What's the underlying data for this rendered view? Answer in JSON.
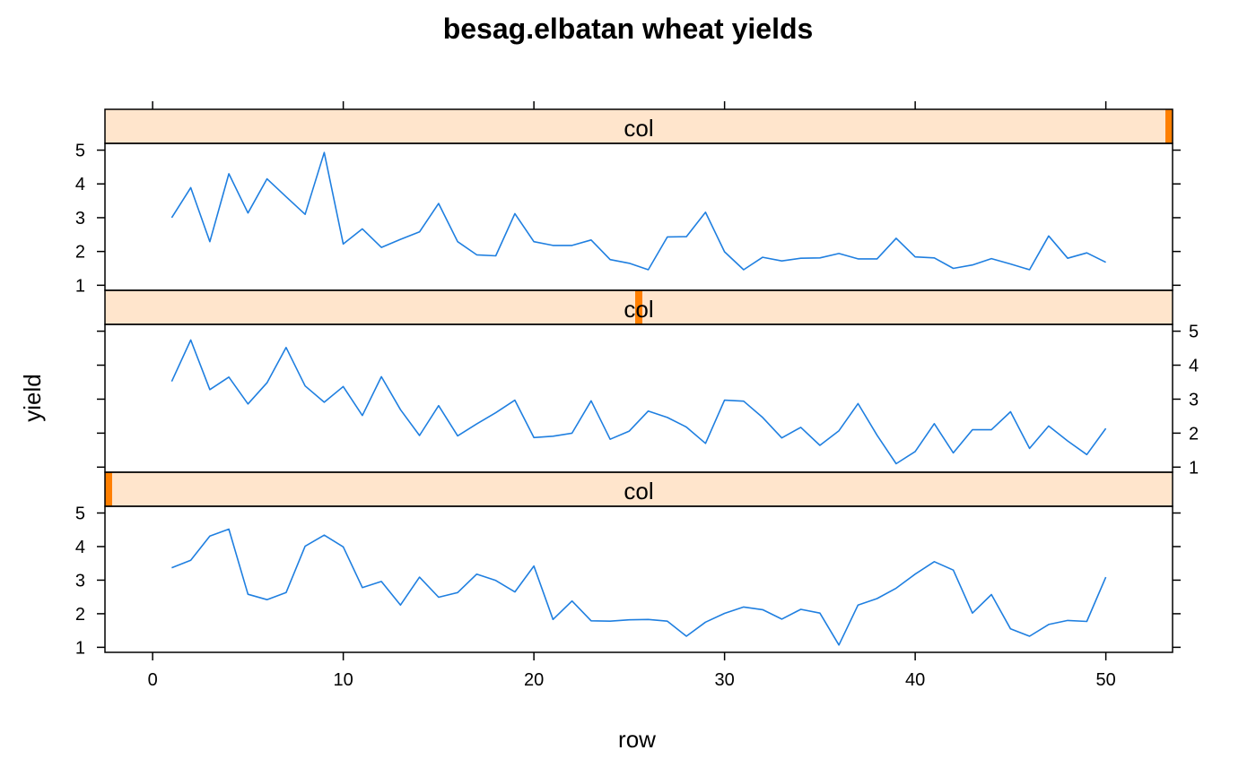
{
  "chart_data": {
    "type": "line",
    "title": "besag.elbatan wheat yields",
    "xlabel": "row",
    "ylabel": "yield",
    "xlim": [
      -2.5,
      53.5
    ],
    "ylim": [
      0.85,
      5.2
    ],
    "x_ticks": [
      0,
      10,
      20,
      30,
      40,
      50
    ],
    "y_ticks": [
      1,
      2,
      3,
      4,
      5
    ],
    "colors": {
      "line": "#1f7fe0",
      "strip_bg": "#ffe5cc",
      "strip_indicator": "#ff7f00",
      "frame": "#000000"
    },
    "panels": [
      {
        "strip": "col",
        "strip_level": 1,
        "levels": 3,
        "x": [
          1,
          2,
          3,
          4,
          5,
          6,
          7,
          8,
          9,
          10,
          11,
          12,
          13,
          14,
          15,
          16,
          17,
          18,
          19,
          20,
          21,
          22,
          23,
          24,
          25,
          26,
          27,
          28,
          29,
          30,
          31,
          32,
          33,
          34,
          35,
          36,
          37,
          38,
          39,
          40,
          41,
          42,
          43,
          44,
          45,
          46,
          47,
          48,
          49,
          50
        ],
        "y": [
          3.37,
          3.59,
          4.31,
          4.52,
          2.58,
          2.42,
          2.63,
          4.01,
          4.34,
          3.99,
          2.78,
          2.96,
          2.26,
          3.09,
          2.49,
          2.63,
          3.18,
          2.99,
          2.65,
          3.42,
          1.83,
          2.38,
          1.79,
          1.78,
          1.82,
          1.83,
          1.78,
          1.33,
          1.75,
          2.01,
          2.2,
          2.12,
          1.84,
          2.13,
          2.02,
          1.07,
          2.26,
          2.45,
          2.76,
          3.18,
          3.55,
          3.3,
          2.02,
          2.57,
          1.55,
          1.33,
          1.68,
          1.8,
          1.77,
          3.09
        ]
      },
      {
        "strip": "col",
        "strip_level": 2,
        "levels": 3,
        "x": [
          1,
          2,
          3,
          4,
          5,
          6,
          7,
          8,
          9,
          10,
          11,
          12,
          13,
          14,
          15,
          16,
          17,
          18,
          19,
          20,
          21,
          22,
          23,
          24,
          25,
          26,
          27,
          28,
          29,
          30,
          31,
          32,
          33,
          34,
          35,
          36,
          37,
          38,
          39,
          40,
          41,
          42,
          43,
          44,
          45,
          46,
          47,
          48,
          49,
          50
        ],
        "y": [
          3.52,
          4.74,
          3.28,
          3.65,
          2.86,
          3.48,
          4.52,
          3.39,
          2.91,
          3.37,
          2.52,
          3.66,
          2.69,
          1.93,
          2.81,
          1.92,
          2.27,
          2.6,
          2.97,
          1.87,
          1.91,
          2.0,
          2.95,
          1.82,
          2.06,
          2.65,
          2.46,
          2.18,
          1.7,
          2.97,
          2.94,
          2.46,
          1.86,
          2.17,
          1.64,
          2.07,
          2.87,
          1.94,
          1.1,
          1.46,
          2.28,
          1.42,
          2.1,
          2.1,
          2.63,
          1.55,
          2.21,
          1.77,
          1.37,
          2.14
        ]
      },
      {
        "strip": "col",
        "strip_level": 3,
        "levels": 3,
        "x": [
          1,
          2,
          3,
          4,
          5,
          6,
          7,
          8,
          9,
          10,
          11,
          12,
          13,
          14,
          15,
          16,
          17,
          18,
          19,
          20,
          21,
          22,
          23,
          24,
          25,
          26,
          27,
          28,
          29,
          30,
          31,
          32,
          33,
          34,
          35,
          36,
          37,
          38,
          39,
          40,
          41,
          42,
          43,
          44,
          45,
          46,
          47,
          48,
          49,
          50
        ],
        "y": [
          3.0,
          3.89,
          2.29,
          4.3,
          3.14,
          4.15,
          3.62,
          3.1,
          4.93,
          2.22,
          2.67,
          2.12,
          2.36,
          2.58,
          3.42,
          2.29,
          1.9,
          1.87,
          3.12,
          2.29,
          2.18,
          2.18,
          2.34,
          1.76,
          1.65,
          1.46,
          2.43,
          2.44,
          3.16,
          1.99,
          1.46,
          1.83,
          1.72,
          1.8,
          1.81,
          1.94,
          1.78,
          1.78,
          2.39,
          1.84,
          1.81,
          1.5,
          1.6,
          1.79,
          1.63,
          1.46,
          2.46,
          1.8,
          1.96,
          1.68
        ]
      }
    ]
  }
}
